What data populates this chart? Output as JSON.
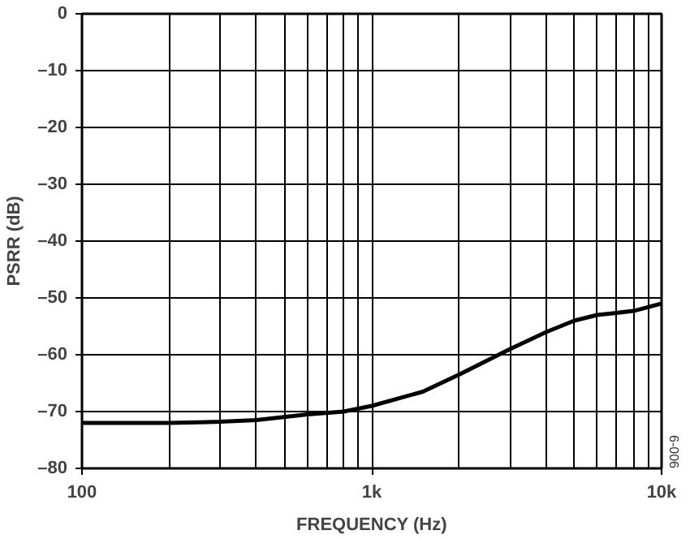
{
  "chart_data": {
    "type": "line",
    "xlabel": "FREQUENCY (Hz)",
    "ylabel": "PSRR (dB)",
    "log": "x",
    "grid": true,
    "marker": "none",
    "line_style": "solid",
    "xlim": [
      100,
      10000
    ],
    "ylim": [
      -80,
      0
    ],
    "xticks": [
      100,
      {
        "value": 1000,
        "label": "1k"
      },
      {
        "value": 10000,
        "label": "10k"
      }
    ],
    "yticks": [
      {
        "value": -80,
        "label": "–80"
      },
      {
        "value": -70,
        "label": "–70"
      },
      {
        "value": -60,
        "label": "–60"
      },
      {
        "value": -50,
        "label": "–50"
      },
      {
        "value": -40,
        "label": "–40"
      },
      {
        "value": -30,
        "label": "–30"
      },
      {
        "value": -20,
        "label": "–20"
      },
      {
        "value": -10,
        "label": "–10"
      },
      0
    ],
    "annotations": [
      "6-006"
    ],
    "series": [
      {
        "color": "#000000",
        "x": [
          100,
          200,
          300,
          400,
          600,
          800,
          1000,
          1500,
          2000,
          3000,
          4000,
          5000,
          6000,
          8000,
          10000
        ],
        "values": [
          -72,
          -72,
          -71.8,
          -71.5,
          -70.5,
          -70,
          -69,
          -66.5,
          -63.5,
          -59,
          -56,
          -54,
          -53,
          -52.3,
          -51
        ]
      }
    ]
  }
}
